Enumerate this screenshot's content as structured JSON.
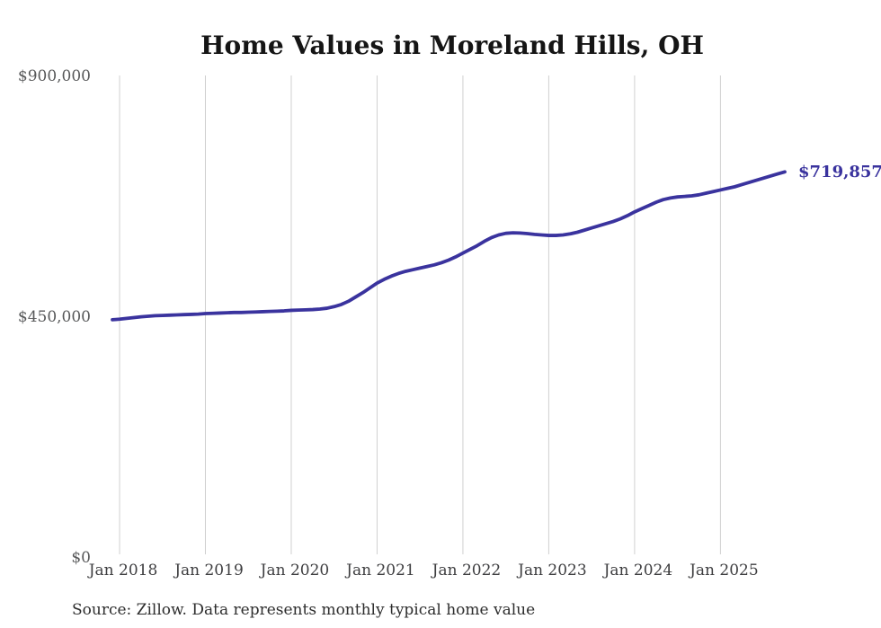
{
  "chart": {
    "title": "Home Values in Moreland Hills, OH",
    "final_value_label": "$719,857",
    "source_note": "Source: Zillow. Data represents monthly typical home value",
    "colors": {
      "line": "#3a339e",
      "final_label": "#3a339e",
      "grid": "#d0d0d0",
      "y_tick_text": "#58595a",
      "x_tick_text": "#3e3e40",
      "title": "#151515",
      "source": "#2d2d2d",
      "background": "#ffffff"
    }
  },
  "chart_data": {
    "type": "line",
    "title": "Home Values in Moreland Hills, OH",
    "xlabel": "",
    "ylabel": "",
    "ylim": [
      0,
      900000
    ],
    "grid": "vertical-only",
    "legend": "none",
    "final_value": 719857,
    "final_value_label": "$719,857",
    "source": "Source: Zillow. Data represents monthly typical home value",
    "y_ticks": [
      {
        "label": "$0",
        "value": 0
      },
      {
        "label": "$450,000",
        "value": 450000
      },
      {
        "label": "$900,000",
        "value": 900000
      }
    ],
    "x_tick_labels": [
      "Jan 2018",
      "Jan 2019",
      "Jan 2020",
      "Jan 2021",
      "Jan 2022",
      "Jan 2023",
      "Jan 2024",
      "Jan 2025"
    ],
    "x": [
      "2017-12",
      "2018-01",
      "2018-02",
      "2018-03",
      "2018-04",
      "2018-05",
      "2018-06",
      "2018-07",
      "2018-08",
      "2018-09",
      "2018-10",
      "2018-11",
      "2018-12",
      "2019-01",
      "2019-02",
      "2019-03",
      "2019-04",
      "2019-05",
      "2019-06",
      "2019-07",
      "2019-08",
      "2019-09",
      "2019-10",
      "2019-11",
      "2019-12",
      "2020-01",
      "2020-02",
      "2020-03",
      "2020-04",
      "2020-05",
      "2020-06",
      "2020-07",
      "2020-08",
      "2020-09",
      "2020-10",
      "2020-11",
      "2020-12",
      "2021-01",
      "2021-02",
      "2021-03",
      "2021-04",
      "2021-05",
      "2021-06",
      "2021-07",
      "2021-08",
      "2021-09",
      "2021-10",
      "2021-11",
      "2021-12",
      "2022-01",
      "2022-02",
      "2022-03",
      "2022-04",
      "2022-05",
      "2022-06",
      "2022-07",
      "2022-08",
      "2022-09",
      "2022-10",
      "2022-11",
      "2022-12",
      "2023-01",
      "2023-02",
      "2023-03",
      "2023-04",
      "2023-05",
      "2023-06",
      "2023-07",
      "2023-08",
      "2023-09",
      "2023-10",
      "2023-11",
      "2023-12",
      "2024-01",
      "2024-02",
      "2024-03",
      "2024-04",
      "2024-05",
      "2024-06",
      "2024-07",
      "2024-08",
      "2024-09",
      "2024-10",
      "2024-11",
      "2024-12",
      "2025-01",
      "2025-02",
      "2025-03",
      "2025-04",
      "2025-05",
      "2025-06",
      "2025-07",
      "2025-08",
      "2025-09",
      "2025-10"
    ],
    "values": [
      443500,
      444500,
      446000,
      447500,
      449000,
      450000,
      451000,
      451500,
      452000,
      452500,
      453000,
      453500,
      454000,
      455000,
      455500,
      456000,
      456500,
      457000,
      457000,
      457500,
      458000,
      458500,
      459000,
      459500,
      460000,
      461000,
      461500,
      462000,
      462500,
      463500,
      465000,
      468000,
      472000,
      478000,
      486000,
      494000,
      503000,
      512000,
      519000,
      525000,
      530000,
      534000,
      537000,
      540000,
      543000,
      546000,
      550000,
      555000,
      561000,
      568000,
      575000,
      582000,
      590000,
      597000,
      602000,
      605000,
      606000,
      605500,
      604500,
      603000,
      602000,
      601000,
      601000,
      602000,
      604000,
      607000,
      611000,
      615000,
      619000,
      623000,
      627000,
      632000,
      638000,
      645000,
      651000,
      657000,
      663000,
      668000,
      671000,
      673000,
      674000,
      675000,
      677000,
      680000,
      683000,
      686000,
      689000,
      692000,
      696000,
      700000,
      704000,
      708000,
      712000,
      716000,
      719857
    ]
  }
}
